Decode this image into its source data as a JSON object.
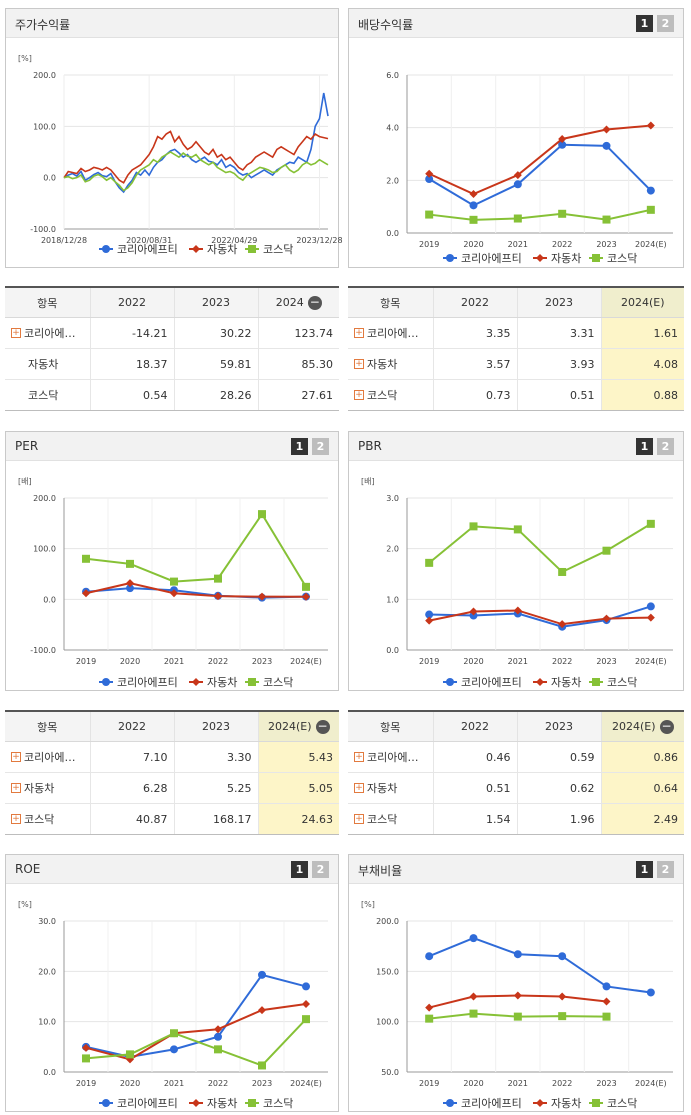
{
  "legend_names": [
    "코리아에프티",
    "자동차",
    "코스닥"
  ],
  "colors": {
    "s1": "#2f6bd8",
    "s2": "#c8361a",
    "s3": "#86c136"
  },
  "panels": {
    "p1": {
      "title": "주가수익률",
      "unit": "[%]"
    },
    "p2": {
      "title": "배당수익률",
      "unit": "",
      "tab1": "1",
      "tab2": "2"
    },
    "p3": {
      "title": "PER",
      "unit": "[배]",
      "tab1": "1",
      "tab2": "2"
    },
    "p4": {
      "title": "PBR",
      "unit": "[배]",
      "tab1": "1",
      "tab2": "2"
    },
    "p5": {
      "title": "ROE",
      "unit": "[%]",
      "tab1": "1",
      "tab2": "2"
    },
    "p6": {
      "title": "부채비율",
      "unit": "[%]",
      "tab1": "1",
      "tab2": "2"
    }
  },
  "chart_data": [
    {
      "type": "line",
      "title": "주가수익률",
      "ylabel": "[%]",
      "ylim": [
        -100,
        200
      ],
      "yticks": [
        "200.0",
        "100.0",
        "0.0",
        "-100.0"
      ],
      "x_tick_labels": [
        "2018/12/28",
        "2020/08/31",
        "2022/04/29",
        "2023/12/28"
      ],
      "x_tick_index": [
        0,
        20,
        40,
        60
      ],
      "series": [
        {
          "name": "코리아에프티",
          "values": [
            0,
            5,
            8,
            3,
            12,
            -5,
            0,
            6,
            10,
            4,
            2,
            8,
            -8,
            -20,
            -28,
            -15,
            -5,
            10,
            5,
            15,
            5,
            20,
            30,
            35,
            45,
            52,
            55,
            48,
            40,
            45,
            35,
            30,
            35,
            40,
            32,
            30,
            25,
            35,
            20,
            25,
            20,
            10,
            5,
            8,
            0,
            5,
            10,
            15,
            10,
            5,
            15,
            20,
            25,
            30,
            28,
            40,
            35,
            30,
            55,
            100,
            115,
            165,
            120
          ]
        },
        {
          "name": "자동차",
          "values": [
            0,
            12,
            10,
            8,
            18,
            12,
            15,
            20,
            18,
            15,
            20,
            15,
            5,
            -5,
            -10,
            5,
            15,
            20,
            25,
            35,
            45,
            60,
            80,
            75,
            85,
            90,
            70,
            80,
            65,
            55,
            60,
            70,
            60,
            50,
            45,
            55,
            40,
            45,
            35,
            40,
            30,
            20,
            15,
            25,
            30,
            40,
            45,
            50,
            45,
            40,
            55,
            60,
            55,
            50,
            45,
            60,
            70,
            80,
            75,
            85,
            80,
            78,
            76
          ]
        },
        {
          "name": "코스닥",
          "values": [
            0,
            2,
            -2,
            0,
            5,
            -8,
            -5,
            3,
            6,
            2,
            -5,
            0,
            -8,
            -15,
            -25,
            -20,
            -10,
            5,
            15,
            20,
            25,
            35,
            30,
            40,
            45,
            50,
            45,
            40,
            48,
            42,
            40,
            45,
            35,
            30,
            25,
            30,
            20,
            15,
            10,
            12,
            8,
            0,
            -5,
            5,
            10,
            15,
            20,
            18,
            15,
            10,
            12,
            20,
            25,
            15,
            10,
            15,
            25,
            30,
            25,
            28,
            35,
            30,
            25
          ]
        }
      ]
    },
    {
      "type": "line",
      "title": "배당수익률",
      "ylim": [
        0,
        6
      ],
      "yticks": [
        "6.0",
        "4.0",
        "2.0",
        "0.0"
      ],
      "categories": [
        "2019",
        "2020",
        "2021",
        "2022",
        "2023",
        "2024(E)"
      ],
      "series": [
        {
          "name": "코리아에프티",
          "values": [
            2.05,
            1.05,
            1.85,
            3.35,
            3.31,
            1.61
          ]
        },
        {
          "name": "자동차",
          "values": [
            2.25,
            1.48,
            2.2,
            3.57,
            3.93,
            4.08
          ]
        },
        {
          "name": "코스닥",
          "values": [
            0.7,
            0.5,
            0.55,
            0.73,
            0.51,
            0.88
          ]
        }
      ]
    },
    {
      "type": "line",
      "title": "PER",
      "ylabel": "[배]",
      "ylim": [
        -100,
        200
      ],
      "yticks": [
        "200.0",
        "100.0",
        "0.0",
        "-100.0"
      ],
      "categories": [
        "2019",
        "2020",
        "2021",
        "2022",
        "2023",
        "2024(E)"
      ],
      "series": [
        {
          "name": "코리아에프티",
          "values": [
            15,
            22,
            18,
            7.1,
            3.3,
            5.43
          ]
        },
        {
          "name": "자동차",
          "values": [
            12,
            32,
            12,
            6.28,
            5.25,
            5.05
          ]
        },
        {
          "name": "코스닥",
          "values": [
            80,
            70,
            35,
            40.87,
            168.17,
            24.63
          ]
        }
      ]
    },
    {
      "type": "line",
      "title": "PBR",
      "ylabel": "[배]",
      "ylim": [
        0,
        3
      ],
      "yticks": [
        "3.0",
        "2.0",
        "1.0",
        "0.0"
      ],
      "categories": [
        "2019",
        "2020",
        "2021",
        "2022",
        "2023",
        "2024(E)"
      ],
      "series": [
        {
          "name": "코리아에프티",
          "values": [
            0.7,
            0.68,
            0.72,
            0.46,
            0.59,
            0.86
          ]
        },
        {
          "name": "자동차",
          "values": [
            0.58,
            0.76,
            0.78,
            0.51,
            0.62,
            0.64
          ]
        },
        {
          "name": "코스닥",
          "values": [
            1.72,
            2.44,
            2.38,
            1.54,
            1.96,
            2.49
          ]
        }
      ]
    },
    {
      "type": "line",
      "title": "ROE",
      "ylabel": "[%]",
      "ylim": [
        0,
        30
      ],
      "yticks": [
        "30.0",
        "20.0",
        "10.0",
        "0.0"
      ],
      "categories": [
        "2019",
        "2020",
        "2021",
        "2022",
        "2023",
        "2024(E)"
      ],
      "series": [
        {
          "name": "코리아에프티",
          "values": [
            5.0,
            3.0,
            4.5,
            7.0,
            19.3,
            17.0
          ]
        },
        {
          "name": "자동차",
          "values": [
            4.8,
            2.5,
            7.7,
            8.5,
            12.3,
            13.5
          ]
        },
        {
          "name": "코스닥",
          "values": [
            2.7,
            3.5,
            7.7,
            4.5,
            1.3,
            10.5
          ]
        }
      ]
    },
    {
      "type": "line",
      "title": "부채비율",
      "ylabel": "[%]",
      "ylim": [
        50,
        200
      ],
      "yticks": [
        "200.0",
        "150.0",
        "100.0",
        "50.0"
      ],
      "categories": [
        "2019",
        "2020",
        "2021",
        "2022",
        "2023",
        "2024(E)"
      ],
      "series": [
        {
          "name": "코리아에프티",
          "values": [
            165,
            183,
            167,
            165,
            135,
            129
          ]
        },
        {
          "name": "자동차",
          "values": [
            114,
            125,
            126,
            125,
            120,
            null
          ]
        },
        {
          "name": "코스닥",
          "values": [
            103,
            108,
            105,
            105.5,
            105,
            null
          ]
        }
      ]
    }
  ],
  "tables": {
    "t1": {
      "headers": [
        "항목",
        "2022",
        "2023",
        "2024"
      ],
      "rows": [
        {
          "name": "코리아에…",
          "v": [
            "-14.21",
            "30.22",
            "123.74"
          ]
        },
        {
          "name": "자동차",
          "v": [
            "18.37",
            "59.81",
            "85.30"
          ]
        },
        {
          "name": "코스닥",
          "v": [
            "0.54",
            "28.26",
            "27.61"
          ]
        }
      ]
    },
    "t2": {
      "headers": [
        "항목",
        "2022",
        "2023",
        "2024(E)"
      ],
      "rows": [
        {
          "name": "코리아에…",
          "v": [
            "3.35",
            "3.31",
            "1.61"
          ]
        },
        {
          "name": "자동차",
          "v": [
            "3.57",
            "3.93",
            "4.08"
          ]
        },
        {
          "name": "코스닥",
          "v": [
            "0.73",
            "0.51",
            "0.88"
          ]
        }
      ]
    },
    "t3": {
      "headers": [
        "항목",
        "2022",
        "2023",
        "2024(E)"
      ],
      "rows": [
        {
          "name": "코리아에…",
          "v": [
            "7.10",
            "3.30",
            "5.43"
          ]
        },
        {
          "name": "자동차",
          "v": [
            "6.28",
            "5.25",
            "5.05"
          ]
        },
        {
          "name": "코스닥",
          "v": [
            "40.87",
            "168.17",
            "24.63"
          ]
        }
      ]
    },
    "t4": {
      "headers": [
        "항목",
        "2022",
        "2023",
        "2024(E)"
      ],
      "rows": [
        {
          "name": "코리아에…",
          "v": [
            "0.46",
            "0.59",
            "0.86"
          ]
        },
        {
          "name": "자동차",
          "v": [
            "0.51",
            "0.62",
            "0.64"
          ]
        },
        {
          "name": "코스닥",
          "v": [
            "1.54",
            "1.96",
            "2.49"
          ]
        }
      ]
    }
  },
  "icons": {
    "expand": "plus-icon",
    "collapse": "minus-icon"
  }
}
